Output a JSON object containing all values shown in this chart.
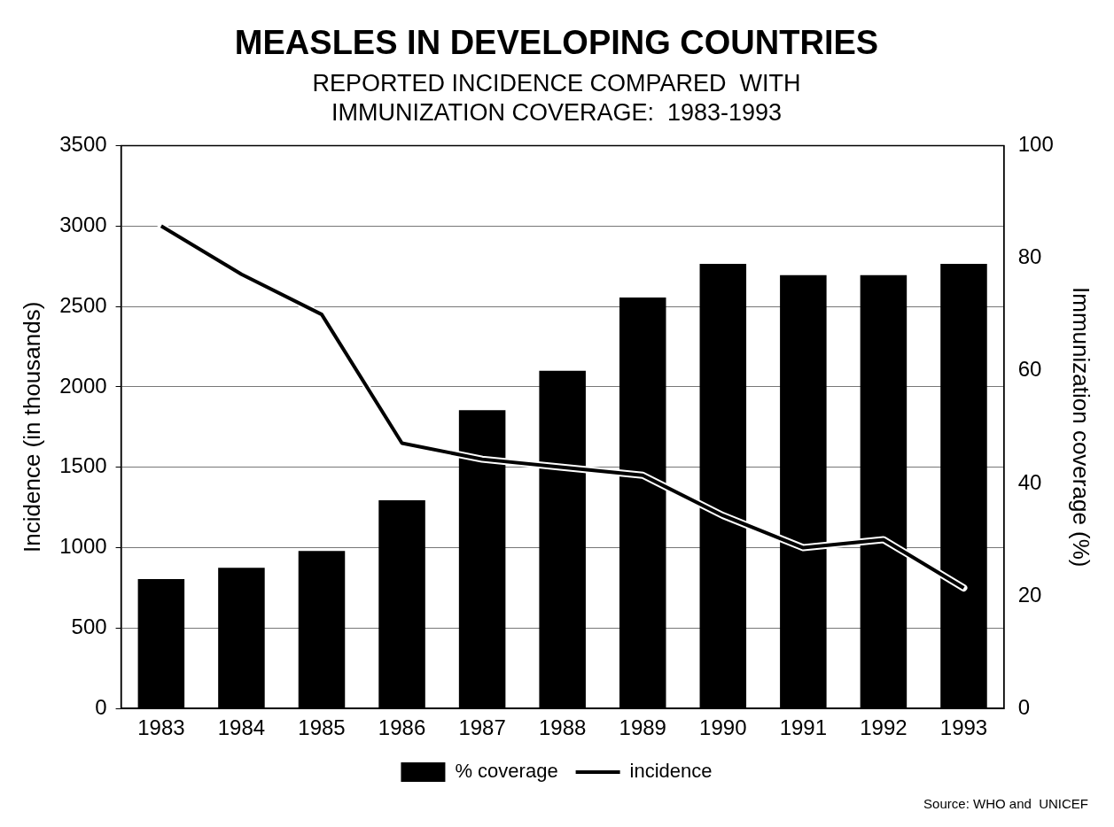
{
  "chart_data": {
    "type": "bar",
    "title": "MEASLES IN DEVELOPING COUNTRIES",
    "subtitle": "REPORTED INCIDENCE COMPARED  WITH\nIMMUNIZATION COVERAGE:  1983-1993",
    "ylabel": "Incidence (in thousands)",
    "y2label": "Immunization coverage (%)",
    "categories": [
      "1983",
      "1984",
      "1985",
      "1986",
      "1987",
      "1988",
      "1989",
      "1990",
      "1991",
      "1992",
      "1993"
    ],
    "series": [
      {
        "name": "% coverage",
        "axis": "y2",
        "color": "#000000",
        "values": [
          23,
          25,
          28,
          37,
          53,
          60,
          73,
          79,
          77,
          77,
          79
        ]
      },
      {
        "name": "incidence",
        "type": "line",
        "axis": "y",
        "color": "#000000",
        "values": [
          3000,
          2700,
          2450,
          1650,
          1550,
          1500,
          1450,
          1200,
          1000,
          1050,
          750
        ]
      }
    ],
    "ylim": [
      0,
      3500
    ],
    "yticks": [
      0,
      500,
      1000,
      1500,
      2000,
      2500,
      3000,
      3500
    ],
    "y2lim": [
      0,
      100
    ],
    "y2ticks": [
      0,
      20,
      40,
      60,
      80,
      100
    ],
    "grid": "y",
    "legend": "bottom",
    "marker": "none",
    "line_style": "solid",
    "annotations": [
      "Source: WHO and  UNICEF"
    ]
  }
}
